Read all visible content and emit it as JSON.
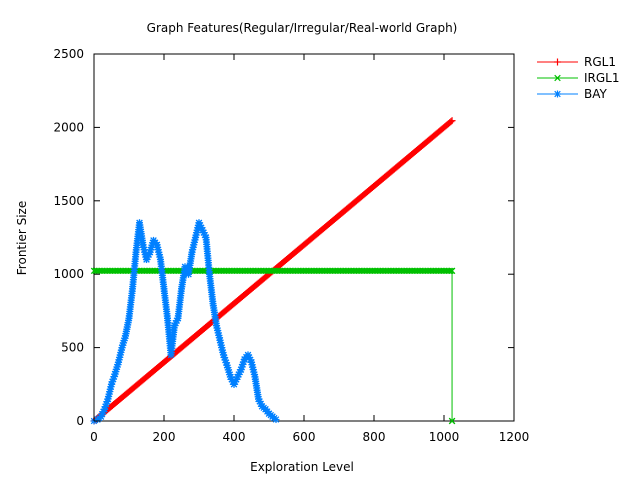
{
  "chart_data": {
    "type": "line",
    "title": "Graph Features(Regular/Irregular/Real-world Graph)",
    "xlabel": "Exploration Level",
    "ylabel": "Frontier Size",
    "xlim": [
      0,
      1200
    ],
    "ylim": [
      0,
      2500
    ],
    "xticks": [
      "0",
      "200",
      "400",
      "600",
      "800",
      "1000",
      "1200"
    ],
    "yticks": [
      "0",
      "500",
      "1000",
      "1500",
      "2000",
      "2500"
    ],
    "grid": false,
    "legend_position": "outside-right-top",
    "series": [
      {
        "name": "RGL1",
        "color": "#ff0000",
        "marker": "plus",
        "x": [
          0,
          1023
        ],
        "y": [
          0,
          2046
        ],
        "marker_step": 4
      },
      {
        "name": "IRGL1",
        "color": "#00c000",
        "marker": "cross",
        "x": [
          0,
          1023,
          1023
        ],
        "y": [
          1023,
          1023,
          0
        ],
        "marker_step": 4
      },
      {
        "name": "BAY",
        "color": "#0080ff",
        "marker": "star",
        "x": [
          0,
          10,
          20,
          30,
          40,
          50,
          60,
          70,
          80,
          90,
          100,
          110,
          120,
          130,
          140,
          150,
          160,
          170,
          180,
          190,
          200,
          210,
          220,
          230,
          240,
          250,
          260,
          270,
          280,
          290,
          300,
          310,
          320,
          330,
          340,
          350,
          360,
          370,
          380,
          390,
          400,
          410,
          420,
          430,
          440,
          450,
          460,
          470,
          480,
          490,
          500,
          510,
          520
        ],
        "y": [
          0,
          10,
          30,
          80,
          150,
          250,
          320,
          400,
          500,
          580,
          700,
          900,
          1150,
          1350,
          1200,
          1100,
          1150,
          1230,
          1200,
          1100,
          900,
          700,
          450,
          650,
          700,
          900,
          1050,
          1000,
          1150,
          1250,
          1350,
          1300,
          1250,
          1000,
          800,
          650,
          550,
          450,
          380,
          300,
          250,
          300,
          350,
          420,
          450,
          400,
          300,
          150,
          100,
          80,
          50,
          30,
          10
        ]
      }
    ]
  }
}
